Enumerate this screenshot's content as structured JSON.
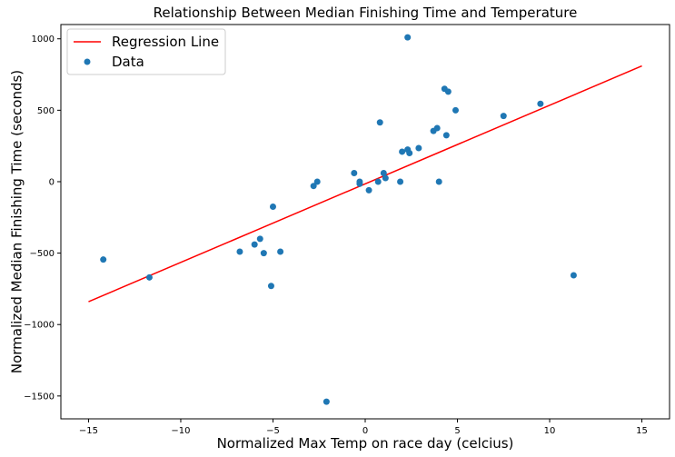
{
  "chart_data": {
    "type": "scatter",
    "title": "Relationship Between Median Finishing Time and Temperature",
    "xlabel": "Normalized Max Temp on race day (celcius)",
    "ylabel": "Normalized Median Finishing Time (seconds)",
    "xlim": [
      -16.5,
      16.5
    ],
    "ylim": [
      -1660,
      1100
    ],
    "xticks": [
      -15,
      -10,
      -5,
      0,
      5,
      10,
      15
    ],
    "yticks": [
      -1500,
      -1000,
      -500,
      0,
      500,
      1000
    ],
    "grid": false,
    "legend": {
      "placement": "top-left",
      "entries": [
        "Regression Line",
        "Data"
      ]
    },
    "series": [
      {
        "name": "Regression Line",
        "kind": "line",
        "color": "#ff0000",
        "x": [
          -15,
          15
        ],
        "y": [
          -840,
          810
        ]
      },
      {
        "name": "Data",
        "kind": "scatter",
        "color": "#1f77b4",
        "x": [
          -14.2,
          -11.7,
          -6.8,
          -6.0,
          -5.7,
          -5.5,
          -5.1,
          -5.0,
          -4.6,
          -2.8,
          -2.6,
          -2.1,
          -0.6,
          -0.3,
          -0.3,
          0.2,
          0.7,
          0.8,
          1.0,
          1.1,
          1.9,
          2.0,
          2.3,
          2.4,
          2.3,
          2.9,
          3.7,
          3.9,
          4.0,
          4.3,
          4.4,
          4.5,
          4.9,
          7.5,
          9.5,
          11.3
        ],
        "y": [
          -545,
          -670,
          -490,
          -440,
          -400,
          -500,
          -730,
          -175,
          -490,
          -30,
          0,
          -1540,
          60,
          -15,
          0,
          -60,
          0,
          415,
          60,
          25,
          0,
          210,
          225,
          200,
          1010,
          235,
          355,
          375,
          0,
          650,
          325,
          630,
          500,
          460,
          545,
          -655
        ]
      }
    ]
  }
}
